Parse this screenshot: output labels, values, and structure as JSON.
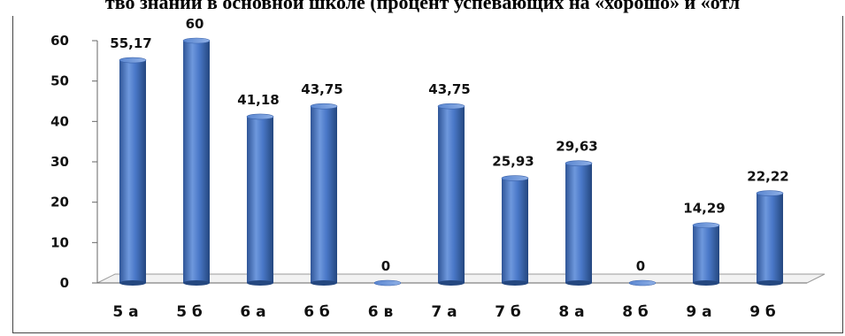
{
  "title": "тво знаний в основной школе (процент успевающих на «хорошо» и «отл",
  "chart_data": {
    "type": "bar",
    "categories": [
      "5 а",
      "5 б",
      "6 а",
      "6 б",
      "6 в",
      "7 а",
      "7 б",
      "8 а",
      "8 б",
      "9 а",
      "9 б"
    ],
    "values": [
      55.17,
      60,
      41.18,
      43.75,
      0,
      43.75,
      25.93,
      29.63,
      0,
      14.29,
      22.22
    ],
    "data_labels": [
      "55,17",
      "60",
      "41,18",
      "43,75",
      "0",
      "43,75",
      "25,93",
      "29,63",
      "0",
      "14,29",
      "22,22"
    ],
    "y_ticks": [
      "0",
      "10",
      "20",
      "30",
      "40",
      "50",
      "60"
    ],
    "ylim": [
      0,
      60
    ],
    "bar_color": "#4472C4",
    "grid": false,
    "legend": "none"
  }
}
